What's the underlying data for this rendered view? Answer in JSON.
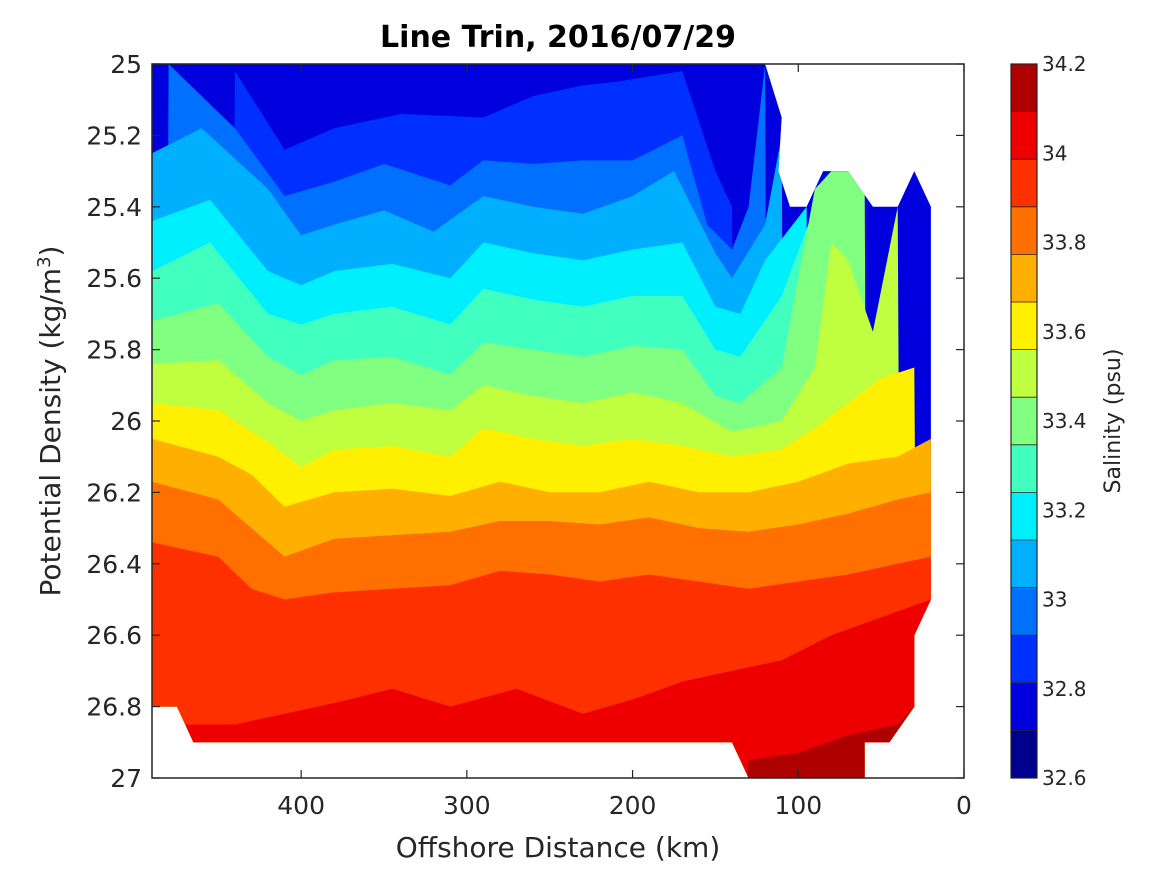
{
  "chart_data": {
    "type": "contourf",
    "title": "Line Trin, 2016/07/29",
    "xlabel": "Offshore Distance (km)",
    "ylabel_prefix": "Potential Density (kg/m",
    "ylabel_sup": "3",
    "ylabel_suffix": ")",
    "xlim": [
      0,
      490
    ],
    "x_reversed": true,
    "x_ticks": [
      400,
      300,
      200,
      100,
      0
    ],
    "ylim": [
      25,
      27
    ],
    "y_reversed": true,
    "y_ticks": [
      "25",
      "25.2",
      "25.4",
      "25.6",
      "25.8",
      "26",
      "26.2",
      "26.4",
      "26.6",
      "26.8",
      "27"
    ],
    "colorbar": {
      "label": "Salinity (psu)",
      "range": [
        32.6,
        34.2
      ],
      "step": 0.1,
      "tick_labels": [
        "32.6",
        "32.8",
        "33",
        "33.2",
        "33.4",
        "33.6",
        "33.8",
        "34",
        "34.2"
      ],
      "colors": [
        "#00008f",
        "#0000df",
        "#0030ff",
        "#0070ff",
        "#00b0ff",
        "#00efff",
        "#40ffbf",
        "#80ff80",
        "#c0ff40",
        "#ffef00",
        "#ffaf00",
        "#ff7000",
        "#ff3000",
        "#ef0000",
        "#af0000"
      ]
    },
    "data_extent": {
      "distance_range_km": [
        20,
        490
      ],
      "density_range": [
        25,
        27
      ]
    },
    "series": [
      {
        "name": "32.7",
        "points": [
          [
            410,
            25.07
          ],
          [
            400,
            25.02
          ],
          [
            320,
            25.04
          ],
          [
            140,
            25.05
          ]
        ]
      },
      {
        "name": "32.8",
        "points": [
          [
            440,
            25.02
          ],
          [
            410,
            25.24
          ],
          [
            380,
            25.18
          ],
          [
            340,
            25.14
          ],
          [
            290,
            25.15
          ],
          [
            260,
            25.09
          ],
          [
            230,
            25.06
          ],
          [
            210,
            25.05
          ],
          [
            170,
            25.02
          ],
          [
            150,
            25.3
          ],
          [
            140,
            25.4
          ]
        ]
      },
      {
        "name": "32.9",
        "points": [
          [
            480,
            25.0
          ],
          [
            440,
            25.18
          ],
          [
            410,
            25.37
          ],
          [
            380,
            25.33
          ],
          [
            350,
            25.28
          ],
          [
            310,
            25.34
          ],
          [
            290,
            25.27
          ],
          [
            260,
            25.28
          ],
          [
            230,
            25.27
          ],
          [
            200,
            25.27
          ],
          [
            170,
            25.2
          ],
          [
            155,
            25.45
          ],
          [
            140,
            25.52
          ],
          [
            130,
            25.4
          ],
          [
            125,
            25.2
          ],
          [
            120,
            25.0
          ]
        ]
      },
      {
        "name": "33.0",
        "points": [
          [
            490,
            25.25
          ],
          [
            460,
            25.18
          ],
          [
            420,
            25.35
          ],
          [
            400,
            25.48
          ],
          [
            380,
            25.45
          ],
          [
            350,
            25.41
          ],
          [
            320,
            25.47
          ],
          [
            290,
            25.37
          ],
          [
            260,
            25.4
          ],
          [
            230,
            25.42
          ],
          [
            200,
            25.37
          ],
          [
            175,
            25.3
          ],
          [
            150,
            25.53
          ],
          [
            140,
            25.6
          ],
          [
            120,
            25.45
          ],
          [
            110,
            25.2
          ]
        ]
      },
      {
        "name": "33.1",
        "points": [
          [
            490,
            25.44
          ],
          [
            455,
            25.38
          ],
          [
            420,
            25.58
          ],
          [
            400,
            25.62
          ],
          [
            380,
            25.58
          ],
          [
            345,
            25.56
          ],
          [
            310,
            25.6
          ],
          [
            290,
            25.5
          ],
          [
            260,
            25.53
          ],
          [
            230,
            25.55
          ],
          [
            200,
            25.52
          ],
          [
            170,
            25.5
          ],
          [
            150,
            25.68
          ],
          [
            135,
            25.7
          ],
          [
            120,
            25.55
          ],
          [
            95,
            25.4
          ]
        ]
      },
      {
        "name": "33.2",
        "points": [
          [
            490,
            25.58
          ],
          [
            455,
            25.5
          ],
          [
            420,
            25.7
          ],
          [
            400,
            25.73
          ],
          [
            380,
            25.7
          ],
          [
            345,
            25.68
          ],
          [
            310,
            25.73
          ],
          [
            290,
            25.63
          ],
          [
            260,
            25.66
          ],
          [
            230,
            25.68
          ],
          [
            200,
            25.65
          ],
          [
            170,
            25.65
          ],
          [
            150,
            25.8
          ],
          [
            135,
            25.82
          ],
          [
            110,
            25.65
          ],
          [
            90,
            25.4
          ]
        ]
      },
      {
        "name": "33.3",
        "points": [
          [
            490,
            25.72
          ],
          [
            450,
            25.67
          ],
          [
            420,
            25.82
          ],
          [
            400,
            25.87
          ],
          [
            380,
            25.83
          ],
          [
            345,
            25.82
          ],
          [
            310,
            25.87
          ],
          [
            290,
            25.78
          ],
          [
            260,
            25.8
          ],
          [
            230,
            25.82
          ],
          [
            200,
            25.79
          ],
          [
            170,
            25.8
          ],
          [
            150,
            25.93
          ],
          [
            135,
            25.95
          ],
          [
            110,
            25.85
          ],
          [
            100,
            25.6
          ],
          [
            90,
            25.35
          ],
          [
            80,
            25.3
          ],
          [
            60,
            25.3
          ]
        ]
      },
      {
        "name": "33.4",
        "points": [
          [
            490,
            25.84
          ],
          [
            450,
            25.83
          ],
          [
            420,
            25.95
          ],
          [
            400,
            26.0
          ],
          [
            380,
            25.97
          ],
          [
            345,
            25.95
          ],
          [
            310,
            25.97
          ],
          [
            290,
            25.9
          ],
          [
            260,
            25.93
          ],
          [
            230,
            25.95
          ],
          [
            200,
            25.92
          ],
          [
            170,
            25.95
          ],
          [
            140,
            26.03
          ],
          [
            110,
            26.0
          ],
          [
            90,
            25.85
          ],
          [
            80,
            25.5
          ],
          [
            70,
            25.55
          ],
          [
            55,
            25.75
          ],
          [
            40,
            25.4
          ]
        ]
      },
      {
        "name": "33.5",
        "points": [
          [
            490,
            25.95
          ],
          [
            450,
            25.97
          ],
          [
            420,
            26.06
          ],
          [
            400,
            26.13
          ],
          [
            380,
            26.08
          ],
          [
            345,
            26.07
          ],
          [
            310,
            26.1
          ],
          [
            290,
            26.02
          ],
          [
            260,
            26.05
          ],
          [
            230,
            26.07
          ],
          [
            200,
            26.05
          ],
          [
            170,
            26.07
          ],
          [
            140,
            26.1
          ],
          [
            110,
            26.08
          ],
          [
            90,
            26.02
          ],
          [
            70,
            25.95
          ],
          [
            50,
            25.88
          ],
          [
            30,
            25.85
          ]
        ]
      },
      {
        "name": "33.6",
        "points": [
          [
            490,
            26.05
          ],
          [
            450,
            26.1
          ],
          [
            430,
            26.15
          ],
          [
            410,
            26.24
          ],
          [
            380,
            26.2
          ],
          [
            345,
            26.19
          ],
          [
            310,
            26.21
          ],
          [
            280,
            26.17
          ],
          [
            250,
            26.2
          ],
          [
            220,
            26.2
          ],
          [
            190,
            26.17
          ],
          [
            160,
            26.2
          ],
          [
            130,
            26.2
          ],
          [
            100,
            26.17
          ],
          [
            70,
            26.12
          ],
          [
            40,
            26.1
          ],
          [
            20,
            26.05
          ]
        ]
      },
      {
        "name": "33.7",
        "points": [
          [
            490,
            26.17
          ],
          [
            450,
            26.22
          ],
          [
            430,
            26.3
          ],
          [
            410,
            26.38
          ],
          [
            380,
            26.33
          ],
          [
            345,
            26.32
          ],
          [
            310,
            26.31
          ],
          [
            280,
            26.28
          ],
          [
            250,
            26.28
          ],
          [
            220,
            26.29
          ],
          [
            190,
            26.27
          ],
          [
            160,
            26.3
          ],
          [
            130,
            26.31
          ],
          [
            100,
            26.29
          ],
          [
            70,
            26.26
          ],
          [
            40,
            26.22
          ],
          [
            20,
            26.2
          ]
        ]
      },
      {
        "name": "33.8",
        "points": [
          [
            490,
            26.34
          ],
          [
            450,
            26.38
          ],
          [
            430,
            26.47
          ],
          [
            410,
            26.5
          ],
          [
            380,
            26.48
          ],
          [
            345,
            26.47
          ],
          [
            310,
            26.46
          ],
          [
            280,
            26.42
          ],
          [
            250,
            26.43
          ],
          [
            220,
            26.45
          ],
          [
            190,
            26.43
          ],
          [
            160,
            26.45
          ],
          [
            130,
            26.47
          ],
          [
            100,
            26.45
          ],
          [
            70,
            26.43
          ],
          [
            40,
            26.4
          ],
          [
            20,
            26.38
          ]
        ]
      },
      {
        "name": "33.9",
        "points": [
          [
            490,
            26.8
          ],
          [
            470,
            26.85
          ],
          [
            440,
            26.85
          ],
          [
            410,
            26.82
          ],
          [
            380,
            26.79
          ],
          [
            345,
            26.75
          ],
          [
            310,
            26.8
          ],
          [
            270,
            26.75
          ],
          [
            230,
            26.82
          ],
          [
            200,
            26.78
          ],
          [
            170,
            26.73
          ],
          [
            140,
            26.7
          ],
          [
            110,
            26.67
          ],
          [
            80,
            26.6
          ],
          [
            50,
            26.55
          ],
          [
            20,
            26.5
          ]
        ]
      },
      {
        "name": "34.0",
        "points": [
          [
            130,
            26.95
          ],
          [
            100,
            26.93
          ],
          [
            70,
            26.88
          ],
          [
            40,
            26.85
          ],
          [
            30,
            26.8
          ]
        ]
      },
      {
        "name": "34.1",
        "points": [
          [
            120,
            26.98
          ],
          [
            80,
            26.96
          ],
          [
            60,
            26.93
          ]
        ]
      }
    ]
  }
}
